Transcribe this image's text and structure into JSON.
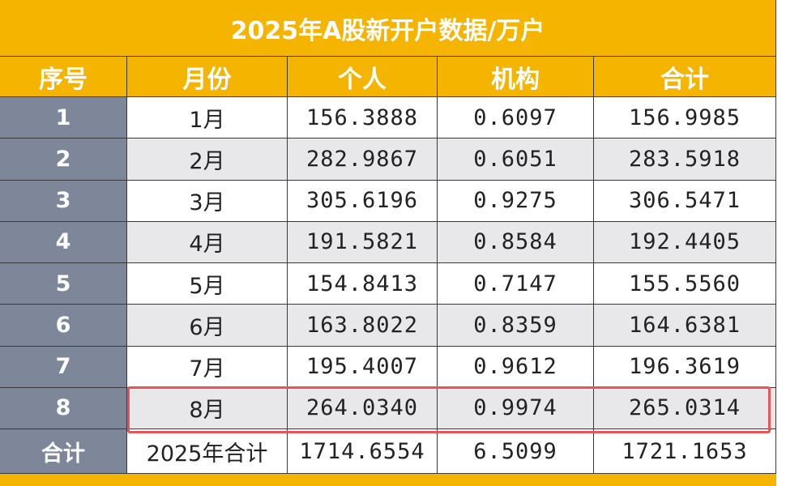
{
  "table": {
    "title": "2025年A股新开户数据/万户",
    "header": [
      "序号",
      "月份",
      "个人",
      "机构",
      "合计"
    ],
    "rows": [
      [
        "1",
        "1月",
        "156.3888",
        "0.6097",
        "156.9985"
      ],
      [
        "2",
        "2月",
        "282.9867",
        "0.6051",
        "283.5918"
      ],
      [
        "3",
        "3月",
        "305.6196",
        "0.9275",
        "306.5471"
      ],
      [
        "4",
        "4月",
        "191.5821",
        "0.8584",
        "192.4405"
      ],
      [
        "5",
        "5月",
        "154.8413",
        "0.7147",
        "155.5560"
      ],
      [
        "6",
        "6月",
        "163.8022",
        "0.8359",
        "164.6381"
      ],
      [
        "7",
        "7月",
        "195.4007",
        "0.9612",
        "196.3619"
      ],
      [
        "8",
        "8月",
        "264.0340",
        "0.9974",
        "265.0314"
      ],
      [
        "合计",
        "2025年合计",
        "1714.6554",
        "6.5099",
        "1721.1653"
      ]
    ]
  }
}
